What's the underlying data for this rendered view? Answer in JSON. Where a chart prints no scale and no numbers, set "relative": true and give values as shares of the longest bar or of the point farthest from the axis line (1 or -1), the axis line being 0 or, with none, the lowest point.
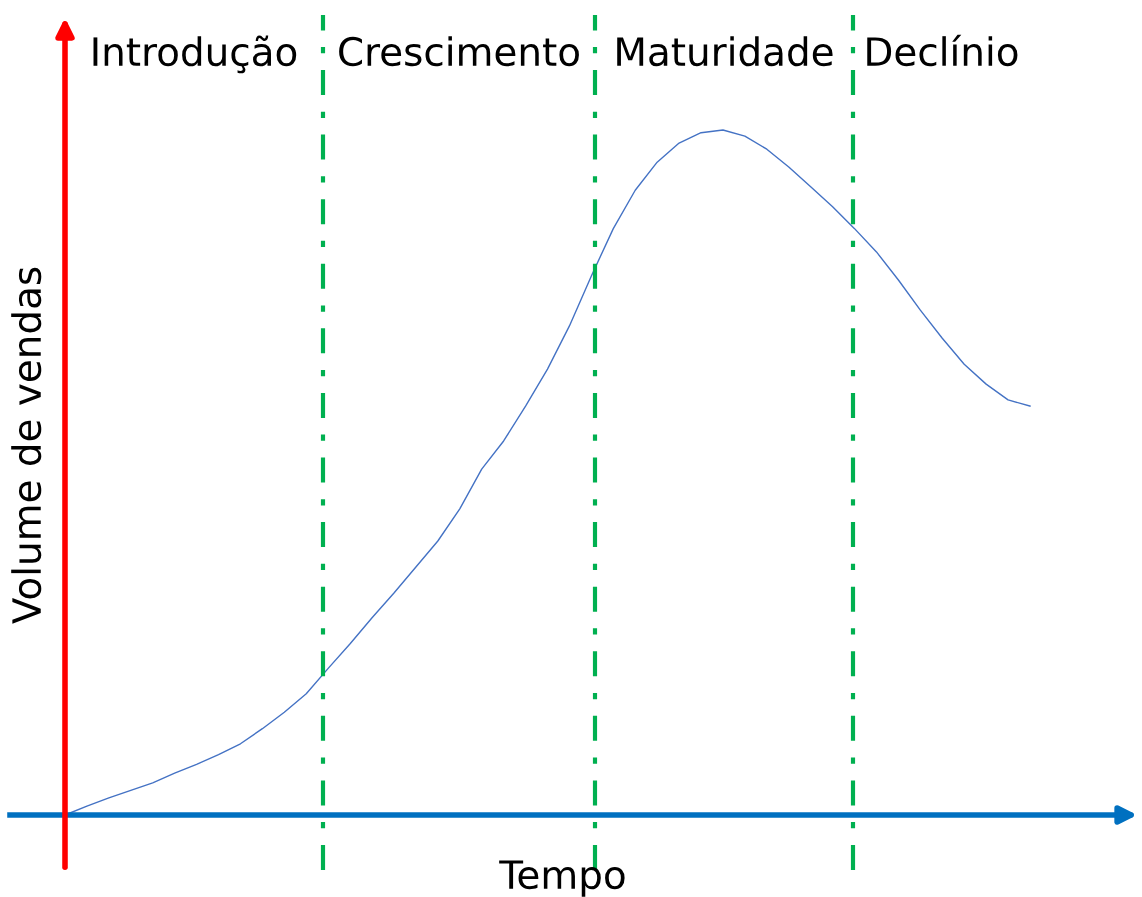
{
  "chart_data": {
    "type": "line",
    "relative": true,
    "xlabel": "Tempo",
    "ylabel": "Volume de vendas",
    "categories": [
      null,
      null,
      null,
      null,
      null,
      null,
      null,
      null,
      null,
      null,
      null,
      null,
      null,
      null,
      null,
      null,
      null,
      null,
      null,
      null,
      null,
      null,
      null,
      null,
      null,
      null,
      null,
      null,
      null,
      null,
      null,
      null,
      null,
      null,
      null,
      null,
      null,
      null,
      null,
      null,
      null,
      null,
      null,
      null,
      null
    ],
    "series": [
      {
        "color": "#4472c4",
        "values": [
          0,
          0.013,
          0.025,
          0.036,
          0.047,
          0.061,
          0.074,
          0.088,
          0.104,
          0.126,
          0.15,
          0.177,
          0.214,
          0.25,
          0.288,
          0.324,
          0.362,
          0.4,
          0.447,
          0.505,
          0.546,
          0.597,
          0.651,
          0.714,
          0.787,
          0.856,
          0.912,
          0.953,
          0.981,
          0.996,
          1,
          0.991,
          0.972,
          0.946,
          0.917,
          0.888,
          0.856,
          0.822,
          0.781,
          0.737,
          0.696,
          0.658,
          0.629,
          0.606,
          0.597
        ]
      }
    ],
    "annotations": [
      "Introdução",
      "Crescimento",
      "Maturidade",
      "Declínio"
    ],
    "legend": false,
    "marker": "none",
    "line_style": "solid"
  }
}
